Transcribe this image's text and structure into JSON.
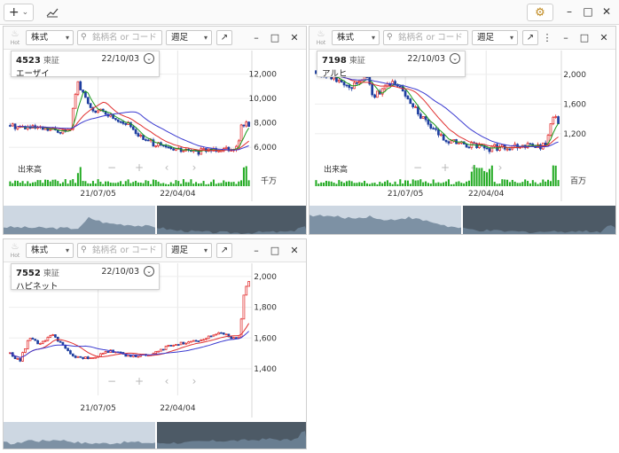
{
  "topbar": {
    "add_label": "+",
    "add_caret": "⌄",
    "chart_icon": "trend-chart-icon",
    "settings_icon": "gear-icon",
    "minimize": "–",
    "maximize": "□",
    "close": "✕"
  },
  "common": {
    "hot_label": "Hot",
    "type_select": "株式",
    "search_placeholder": "銘柄名 or コード",
    "period_select": "週足",
    "popout": "↗",
    "minimize": "–",
    "maximize": "□",
    "close": "✕",
    "volume_label": "出来高",
    "nav_zoom_out": "−",
    "nav_zoom_in": "+",
    "nav_prev": "‹",
    "nav_next": "›",
    "more": "⋮"
  },
  "colors": {
    "up": "#e02020",
    "down": "#1e3fa0",
    "ma_short": "#1a9a1a",
    "ma_mid": "#e03030",
    "ma_long": "#3a3ad0",
    "volume": "#22aa22"
  },
  "panels": [
    {
      "code": "4523",
      "exchange": "東証",
      "date": "22/10/03",
      "name": "エーザイ",
      "y_ticks": [
        "12,000",
        "10,000",
        "8,000",
        "6,000"
      ],
      "y_values": [
        12000,
        10000,
        8000,
        6000
      ],
      "y_range": [
        5000,
        13500
      ],
      "x_labels": [
        "21/07/05",
        "22/04/04"
      ],
      "volume_unit": "千万",
      "has_volume": true,
      "has_more": false
    },
    {
      "code": "7198",
      "exchange": "東証",
      "date": "22/10/03",
      "name": "アルヒ",
      "y_ticks": [
        "2,000",
        "1,600",
        "1,200"
      ],
      "y_values": [
        2000,
        1600,
        1200
      ],
      "y_range": [
        850,
        2250
      ],
      "x_labels": [
        "21/07/05",
        "22/04/04"
      ],
      "volume_unit": "百万",
      "has_volume": true,
      "has_more": true
    },
    {
      "code": "7552",
      "exchange": "東証",
      "date": "22/10/03",
      "name": "ハピネット",
      "y_ticks": [
        "2,000",
        "1,800",
        "1,600",
        "1,400"
      ],
      "y_values": [
        2000,
        1800,
        1600,
        1400
      ],
      "y_range": [
        1250,
        2080
      ],
      "x_labels": [
        "21/07/05",
        "22/04/04"
      ],
      "volume_unit": "",
      "has_volume": false,
      "has_more": false
    }
  ]
}
